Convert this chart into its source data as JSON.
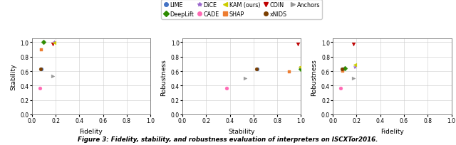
{
  "methods": [
    "LIME",
    "SHAP",
    "DeepLift",
    "COIN",
    "DiCE",
    "xNIDS",
    "CADE",
    "Anchors",
    "KAM"
  ],
  "colors": {
    "LIME": "#4472C4",
    "SHAP": "#ED7D31",
    "DeepLift": "#2E8B00",
    "COIN": "#C00000",
    "DiCE": "#9966CC",
    "xNIDS": "#7B3F00",
    "CADE": "#FF69B4",
    "Anchors": "#999999",
    "KAM": "#CCCC00"
  },
  "markers": {
    "LIME": "o",
    "SHAP": "s",
    "DeepLift": "D",
    "COIN": "v",
    "DiCE": "*",
    "xNIDS": "o",
    "CADE": "o",
    "Anchors": ">",
    "KAM": "<"
  },
  "legend_labels": [
    "LIME",
    "DeepLift",
    "DiCE",
    "CADE",
    "KAM (ours)",
    "SHAP",
    "COIN",
    "xNIDS",
    "Anchors"
  ],
  "legend_methods": [
    "LIME",
    "DeepLift",
    "DiCE",
    "CADE",
    "KAM",
    "SHAP",
    "COIN",
    "xNIDS",
    "Anchors"
  ],
  "plot1": {
    "xlabel": "Fidelity",
    "ylabel": "Stability",
    "points": {
      "LIME": [
        0.08,
        0.63
      ],
      "SHAP": [
        0.08,
        0.9
      ],
      "DeepLift": [
        0.1,
        1.0
      ],
      "COIN": [
        0.175,
        0.975
      ],
      "DiCE": [
        0.185,
        1.0
      ],
      "xNIDS": [
        0.075,
        0.63
      ],
      "CADE": [
        0.065,
        0.36
      ],
      "Anchors": [
        0.175,
        0.53
      ],
      "KAM": [
        0.185,
        0.99
      ]
    }
  },
  "plot2": {
    "xlabel": "Stability",
    "ylabel": "Robustness",
    "points": {
      "LIME": [
        0.63,
        0.63
      ],
      "SHAP": [
        0.9,
        0.59
      ],
      "DeepLift": [
        1.0,
        0.63
      ],
      "COIN": [
        0.975,
        0.975
      ],
      "DiCE": [
        1.0,
        0.655
      ],
      "xNIDS": [
        0.625,
        0.625
      ],
      "CADE": [
        0.375,
        0.36
      ],
      "Anchors": [
        0.53,
        0.5
      ],
      "KAM": [
        0.99,
        0.655
      ]
    }
  },
  "plot3": {
    "xlabel": "Fidelity",
    "ylabel": "Robustness",
    "points": {
      "LIME": [
        0.08,
        0.63
      ],
      "SHAP": [
        0.08,
        0.6
      ],
      "DeepLift": [
        0.1,
        0.635
      ],
      "COIN": [
        0.175,
        0.975
      ],
      "DiCE": [
        0.185,
        0.655
      ],
      "xNIDS": [
        0.075,
        0.625
      ],
      "CADE": [
        0.065,
        0.36
      ],
      "Anchors": [
        0.175,
        0.5
      ],
      "KAM": [
        0.185,
        0.69
      ]
    }
  },
  "caption": "Figure 3: Fidelity, stability, and robustness evaluation of interpreters on ISCXTor2016.",
  "xlim": [
    0.0,
    1.0
  ],
  "ylim": [
    0.0,
    1.05
  ],
  "xticks": [
    0.0,
    0.2,
    0.4,
    0.6,
    0.8,
    1.0
  ],
  "yticks": [
    0.0,
    0.2,
    0.4,
    0.6,
    0.8,
    1.0
  ]
}
